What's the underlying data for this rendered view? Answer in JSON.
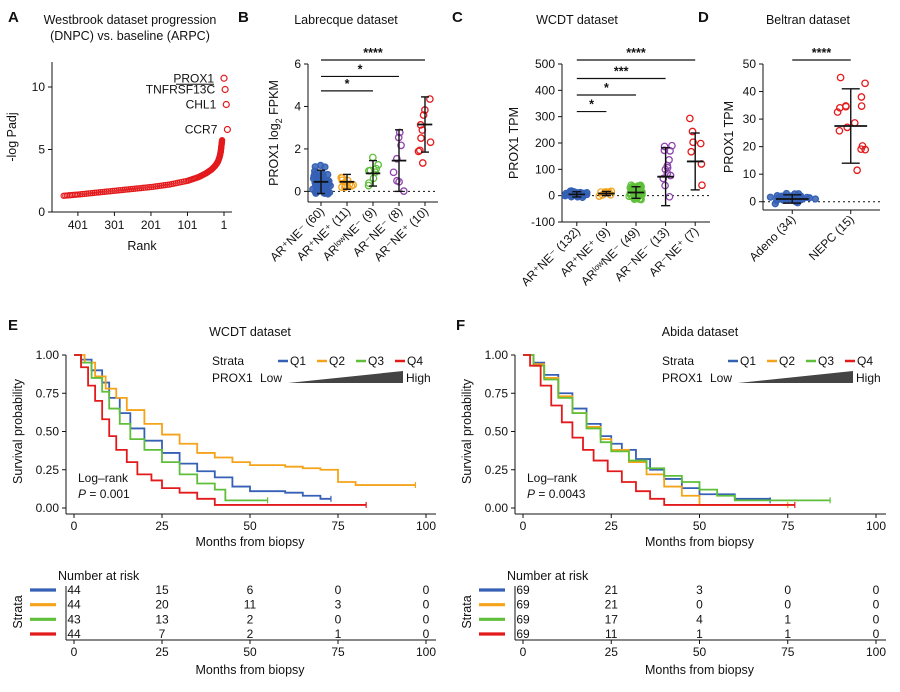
{
  "colors": {
    "red": "#e31a1c",
    "blue": "#3560b5",
    "orange": "#f5a31a",
    "green": "#5fbf3a",
    "purple": "#8e44ad",
    "dark": "#222222",
    "gray": "#555555"
  },
  "chart_data": [
    {
      "panel": "A",
      "type": "scatter",
      "title_lines": [
        "Westbrook dataset progression",
        "(DNPC) vs. baseline (ARPC)"
      ],
      "xlabel": "Rank",
      "ylabel": "-log Padj",
      "xticks": [
        "401",
        "301",
        "201",
        "101",
        "1"
      ],
      "yticks": [
        "0",
        "5",
        "10"
      ],
      "xlim": [
        450,
        1
      ],
      "ylim": [
        0,
        12
      ],
      "labeled_points": [
        {
          "gene": "PROX1",
          "rank": 1,
          "value": 10.7,
          "underlined": true
        },
        {
          "gene": "TNFRSF13C",
          "rank": 2,
          "value": 9.8,
          "underlined": false
        },
        {
          "gene": "CHL1",
          "rank": 3,
          "value": 8.6,
          "underlined": false
        },
        {
          "gene": "CCR7",
          "rank": 4,
          "value": 6.6,
          "underlined": false
        }
      ],
      "curve": [
        [
          440,
          1.3
        ],
        [
          400,
          1.4
        ],
        [
          350,
          1.55
        ],
        [
          300,
          1.7
        ],
        [
          250,
          1.85
        ],
        [
          200,
          2.0
        ],
        [
          150,
          2.2
        ],
        [
          100,
          2.5
        ],
        [
          70,
          2.8
        ],
        [
          50,
          3.1
        ],
        [
          35,
          3.4
        ],
        [
          25,
          3.7
        ],
        [
          18,
          4.0
        ],
        [
          13,
          4.4
        ],
        [
          10,
          4.8
        ],
        [
          8,
          5.3
        ],
        [
          6,
          5.8
        ]
      ]
    },
    {
      "panel": "B",
      "type": "dot-plot",
      "title": "Labrecque dataset",
      "ylabel_main": "PROX1 log",
      "ylabel_sub": "2",
      "ylabel_tail": " FPKM",
      "ylim": [
        -0.5,
        6
      ],
      "yticks": [
        "0",
        "2",
        "4",
        "6"
      ],
      "groups": [
        {
          "label": "AR⁺NE⁻ (60)",
          "n": 60,
          "mean": 0.45,
          "sd": 0.55,
          "color": "blue",
          "filled": true
        },
        {
          "label": "AR⁺NE⁺ (11)",
          "n": 11,
          "mean": 0.45,
          "sd": 0.35,
          "color": "orange",
          "filled": false
        },
        {
          "label": "ARˡᵒʷNE⁻ (9)",
          "n": 9,
          "mean": 0.85,
          "sd": 0.6,
          "color": "green",
          "filled": false
        },
        {
          "label": "AR⁻NE⁻ (8)",
          "n": 8,
          "mean": 1.45,
          "sd": 1.45,
          "color": "purple",
          "filled": false
        },
        {
          "label": "AR⁻NE⁺ (10)",
          "n": 10,
          "mean": 3.15,
          "sd": 1.3,
          "color": "red",
          "filled": false
        }
      ],
      "significance": [
        {
          "from": 0,
          "to": 4,
          "stars": "****"
        },
        {
          "from": 0,
          "to": 3,
          "stars": "*"
        },
        {
          "from": 0,
          "to": 2,
          "stars": "*"
        }
      ]
    },
    {
      "panel": "C",
      "type": "dot-plot",
      "title": "WCDT dataset",
      "ylabel_main": "PROX1 TPM",
      "ylim": [
        -100,
        500
      ],
      "yticks": [
        "-100",
        "0",
        "100",
        "200",
        "300",
        "400",
        "500"
      ],
      "groups": [
        {
          "label": "AR⁺NE⁻ (132)",
          "n": 132,
          "mean": 5,
          "sd": 10,
          "color": "blue",
          "filled": true
        },
        {
          "label": "AR⁺NE⁺ (9)",
          "n": 9,
          "mean": 8,
          "sd": 8,
          "color": "orange",
          "filled": false
        },
        {
          "label": "ARˡᵒʷNE⁻ (49)",
          "n": 49,
          "mean": 12,
          "sd": 22,
          "color": "green",
          "filled": false
        },
        {
          "label": "AR⁻NE⁻ (13)",
          "n": 13,
          "mean": 72,
          "sd": 110,
          "color": "purple",
          "filled": false
        },
        {
          "label": "AR⁻NE⁺ (7)",
          "n": 7,
          "mean": 130,
          "sd": 108,
          "color": "red",
          "filled": false
        }
      ],
      "significance": [
        {
          "from": 0,
          "to": 4,
          "stars": "****"
        },
        {
          "from": 0,
          "to": 3,
          "stars": "***"
        },
        {
          "from": 0,
          "to": 2,
          "stars": "*"
        },
        {
          "from": 0,
          "to": 1,
          "stars": "*"
        }
      ]
    },
    {
      "panel": "D",
      "type": "dot-plot",
      "title": "Beltran dataset",
      "ylabel_main": "PROX1 TPM",
      "ylim": [
        -3,
        50
      ],
      "yticks": [
        "0",
        "10",
        "20",
        "30",
        "40",
        "50"
      ],
      "groups": [
        {
          "label": "Adeno (34)",
          "n": 34,
          "mean": 1.0,
          "sd": 1.5,
          "color": "blue",
          "filled": true
        },
        {
          "label": "NEPC (15)",
          "n": 15,
          "mean": 27.5,
          "sd": 13.5,
          "color": "red",
          "filled": false
        }
      ],
      "significance": [
        {
          "from": 0,
          "to": 1,
          "stars": "****"
        }
      ]
    },
    {
      "panel": "E",
      "type": "survival",
      "title": "WCDT dataset",
      "xlabel": "Months from biopsy",
      "ylabel": "Survival probability",
      "xlim": [
        0,
        100
      ],
      "ylim": [
        0,
        1
      ],
      "xticks": [
        "0",
        "25",
        "50",
        "75",
        "100"
      ],
      "yticks": [
        "0.00",
        "0.25",
        "0.50",
        "0.75",
        "1.00"
      ],
      "legend": {
        "strata_label": "Strata",
        "prox1_label": "PROX1",
        "low": "Low",
        "high": "High",
        "entries": [
          "Q1",
          "Q2",
          "Q3",
          "Q4"
        ]
      },
      "stat_lines": [
        "Log–rank",
        "P = 0.001"
      ],
      "series": [
        {
          "name": "Q1",
          "color": "blue",
          "points": [
            [
              0,
              1
            ],
            [
              2,
              0.97
            ],
            [
              5,
              0.9
            ],
            [
              8,
              0.82
            ],
            [
              10,
              0.72
            ],
            [
              13,
              0.62
            ],
            [
              16,
              0.52
            ],
            [
              20,
              0.44
            ],
            [
              25,
              0.36
            ],
            [
              30,
              0.29
            ],
            [
              35,
              0.24
            ],
            [
              40,
              0.2
            ],
            [
              45,
              0.14
            ],
            [
              50,
              0.11
            ],
            [
              60,
              0.1
            ],
            [
              65,
              0.08
            ],
            [
              70,
              0.06
            ],
            [
              73,
              0.06
            ]
          ]
        },
        {
          "name": "Q2",
          "color": "orange",
          "points": [
            [
              0,
              1
            ],
            [
              3,
              0.95
            ],
            [
              6,
              0.86
            ],
            [
              9,
              0.78
            ],
            [
              12,
              0.72
            ],
            [
              15,
              0.64
            ],
            [
              20,
              0.55
            ],
            [
              25,
              0.48
            ],
            [
              30,
              0.42
            ],
            [
              35,
              0.36
            ],
            [
              40,
              0.33
            ],
            [
              45,
              0.3
            ],
            [
              50,
              0.28
            ],
            [
              60,
              0.27
            ],
            [
              65,
              0.26
            ],
            [
              70,
              0.25
            ],
            [
              75,
              0.17
            ],
            [
              80,
              0.15
            ],
            [
              97,
              0.15
            ]
          ]
        },
        {
          "name": "Q3",
          "color": "green",
          "points": [
            [
              0,
              1
            ],
            [
              2,
              0.95
            ],
            [
              5,
              0.85
            ],
            [
              8,
              0.76
            ],
            [
              10,
              0.65
            ],
            [
              13,
              0.55
            ],
            [
              16,
              0.45
            ],
            [
              20,
              0.38
            ],
            [
              25,
              0.3
            ],
            [
              30,
              0.22
            ],
            [
              35,
              0.16
            ],
            [
              40,
              0.12
            ],
            [
              43,
              0.05
            ],
            [
              50,
              0.05
            ],
            [
              55,
              0.05
            ]
          ]
        },
        {
          "name": "Q4",
          "color": "red",
          "points": [
            [
              0,
              1
            ],
            [
              2,
              0.92
            ],
            [
              4,
              0.8
            ],
            [
              6,
              0.7
            ],
            [
              8,
              0.58
            ],
            [
              10,
              0.47
            ],
            [
              12,
              0.38
            ],
            [
              15,
              0.3
            ],
            [
              18,
              0.22
            ],
            [
              22,
              0.18
            ],
            [
              25,
              0.13
            ],
            [
              30,
              0.1
            ],
            [
              35,
              0.06
            ],
            [
              40,
              0.02
            ],
            [
              50,
              0.02
            ],
            [
              60,
              0.02
            ],
            [
              83,
              0.02
            ]
          ]
        }
      ],
      "risk_table": {
        "title": "Number at risk",
        "axis_label": "Strata",
        "times": [
          "0",
          "25",
          "50",
          "75",
          "100"
        ],
        "rows": [
          {
            "name": "Q1",
            "color": "blue",
            "counts": [
              "44",
              "15",
              "6",
              "0",
              "0"
            ]
          },
          {
            "name": "Q2",
            "color": "orange",
            "counts": [
              "44",
              "20",
              "11",
              "3",
              "0"
            ]
          },
          {
            "name": "Q3",
            "color": "green",
            "counts": [
              "43",
              "13",
              "2",
              "0",
              "0"
            ]
          },
          {
            "name": "Q4",
            "color": "red",
            "counts": [
              "44",
              "7",
              "2",
              "1",
              "0"
            ]
          }
        ]
      }
    },
    {
      "panel": "F",
      "type": "survival",
      "title": "Abida dataset",
      "xlabel": "Months from biopsy",
      "ylabel": "Survival probability",
      "xlim": [
        0,
        100
      ],
      "ylim": [
        0,
        1
      ],
      "xticks": [
        "0",
        "25",
        "50",
        "75",
        "100"
      ],
      "yticks": [
        "0.00",
        "0.25",
        "0.50",
        "0.75",
        "1.00"
      ],
      "legend": {
        "strata_label": "Strata",
        "prox1_label": "PROX1",
        "low": "Low",
        "high": "High",
        "entries": [
          "Q1",
          "Q2",
          "Q3",
          "Q4"
        ]
      },
      "stat_lines": [
        "Log–rank",
        "P = 0.0043"
      ],
      "series": [
        {
          "name": "Q1",
          "color": "blue",
          "points": [
            [
              0,
              1
            ],
            [
              3,
              0.95
            ],
            [
              6,
              0.87
            ],
            [
              10,
              0.75
            ],
            [
              14,
              0.65
            ],
            [
              18,
              0.55
            ],
            [
              22,
              0.47
            ],
            [
              25,
              0.42
            ],
            [
              28,
              0.38
            ],
            [
              32,
              0.32
            ],
            [
              36,
              0.25
            ],
            [
              40,
              0.19
            ],
            [
              45,
              0.13
            ],
            [
              50,
              0.09
            ],
            [
              60,
              0.06
            ],
            [
              70,
              0.05
            ]
          ]
        },
        {
          "name": "Q2",
          "color": "orange",
          "points": [
            [
              0,
              1
            ],
            [
              3,
              0.94
            ],
            [
              6,
              0.85
            ],
            [
              10,
              0.73
            ],
            [
              14,
              0.62
            ],
            [
              18,
              0.53
            ],
            [
              22,
              0.45
            ],
            [
              25,
              0.38
            ],
            [
              30,
              0.3
            ],
            [
              35,
              0.22
            ],
            [
              40,
              0.14
            ],
            [
              45,
              0.08
            ],
            [
              50,
              0.02
            ],
            [
              55,
              0.02
            ],
            [
              75,
              0.02
            ]
          ]
        },
        {
          "name": "Q3",
          "color": "green",
          "points": [
            [
              0,
              1
            ],
            [
              3,
              0.93
            ],
            [
              6,
              0.84
            ],
            [
              10,
              0.72
            ],
            [
              14,
              0.62
            ],
            [
              18,
              0.52
            ],
            [
              22,
              0.43
            ],
            [
              25,
              0.37
            ],
            [
              30,
              0.31
            ],
            [
              35,
              0.26
            ],
            [
              40,
              0.21
            ],
            [
              45,
              0.17
            ],
            [
              50,
              0.12
            ],
            [
              55,
              0.08
            ],
            [
              60,
              0.05
            ],
            [
              87,
              0.05
            ]
          ]
        },
        {
          "name": "Q4",
          "color": "red",
          "points": [
            [
              0,
              1
            ],
            [
              2,
              0.93
            ],
            [
              5,
              0.8
            ],
            [
              8,
              0.67
            ],
            [
              11,
              0.56
            ],
            [
              14,
              0.46
            ],
            [
              17,
              0.38
            ],
            [
              20,
              0.31
            ],
            [
              24,
              0.24
            ],
            [
              28,
              0.17
            ],
            [
              32,
              0.11
            ],
            [
              36,
              0.06
            ],
            [
              40,
              0.02
            ],
            [
              50,
              0.02
            ],
            [
              77,
              0.02
            ]
          ]
        }
      ],
      "risk_table": {
        "title": "Number at risk",
        "axis_label": "Strata",
        "times": [
          "0",
          "25",
          "50",
          "75",
          "100"
        ],
        "rows": [
          {
            "name": "Q1",
            "color": "blue",
            "counts": [
              "69",
              "21",
              "3",
              "0",
              "0"
            ]
          },
          {
            "name": "Q2",
            "color": "orange",
            "counts": [
              "69",
              "21",
              "0",
              "0",
              "0"
            ]
          },
          {
            "name": "Q3",
            "color": "green",
            "counts": [
              "69",
              "17",
              "4",
              "1",
              "0"
            ]
          },
          {
            "name": "Q4",
            "color": "red",
            "counts": [
              "69",
              "11",
              "1",
              "1",
              "0"
            ]
          }
        ]
      }
    }
  ]
}
